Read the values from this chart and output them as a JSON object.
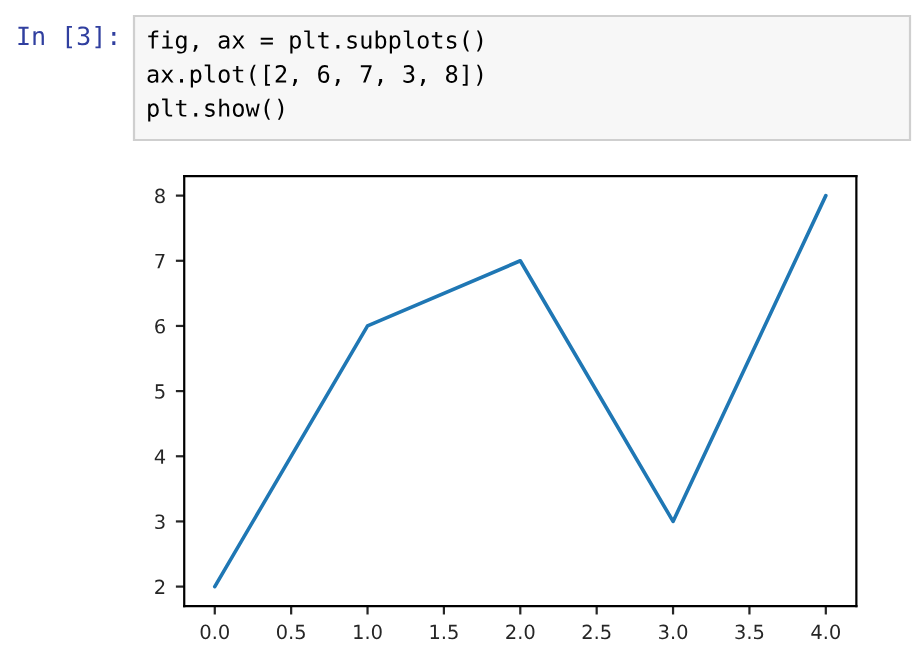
{
  "chart_data": {
    "type": "line",
    "x": [
      0,
      1,
      2,
      3,
      4
    ],
    "series": [
      {
        "color": "#1f77b4",
        "values": [
          2,
          6,
          7,
          3,
          8
        ]
      }
    ],
    "xlim": [
      -0.2,
      4.2
    ],
    "ylim": [
      1.7,
      8.3
    ],
    "xticks": [
      {
        "value": 0,
        "label": "0.0"
      },
      {
        "value": 0.5,
        "label": "0.5"
      },
      {
        "value": 1,
        "label": "1.0"
      },
      {
        "value": 1.5,
        "label": "1.5"
      },
      {
        "value": 2,
        "label": "2.0"
      },
      {
        "value": 2.5,
        "label": "2.5"
      },
      {
        "value": 3,
        "label": "3.0"
      },
      {
        "value": 3.5,
        "label": "3.5"
      },
      {
        "value": 4,
        "label": "4.0"
      }
    ],
    "yticks": [
      2,
      3,
      4,
      5,
      6,
      7,
      8
    ],
    "grid": false,
    "legend": false,
    "marker": "none",
    "line_style": "solid",
    "annotations": [
      "In [3]:",
      "fig, ax = plt.subplots()",
      "ax.plot([2, 6, 7, 3, 8])",
      "plt.show()"
    ]
  }
}
